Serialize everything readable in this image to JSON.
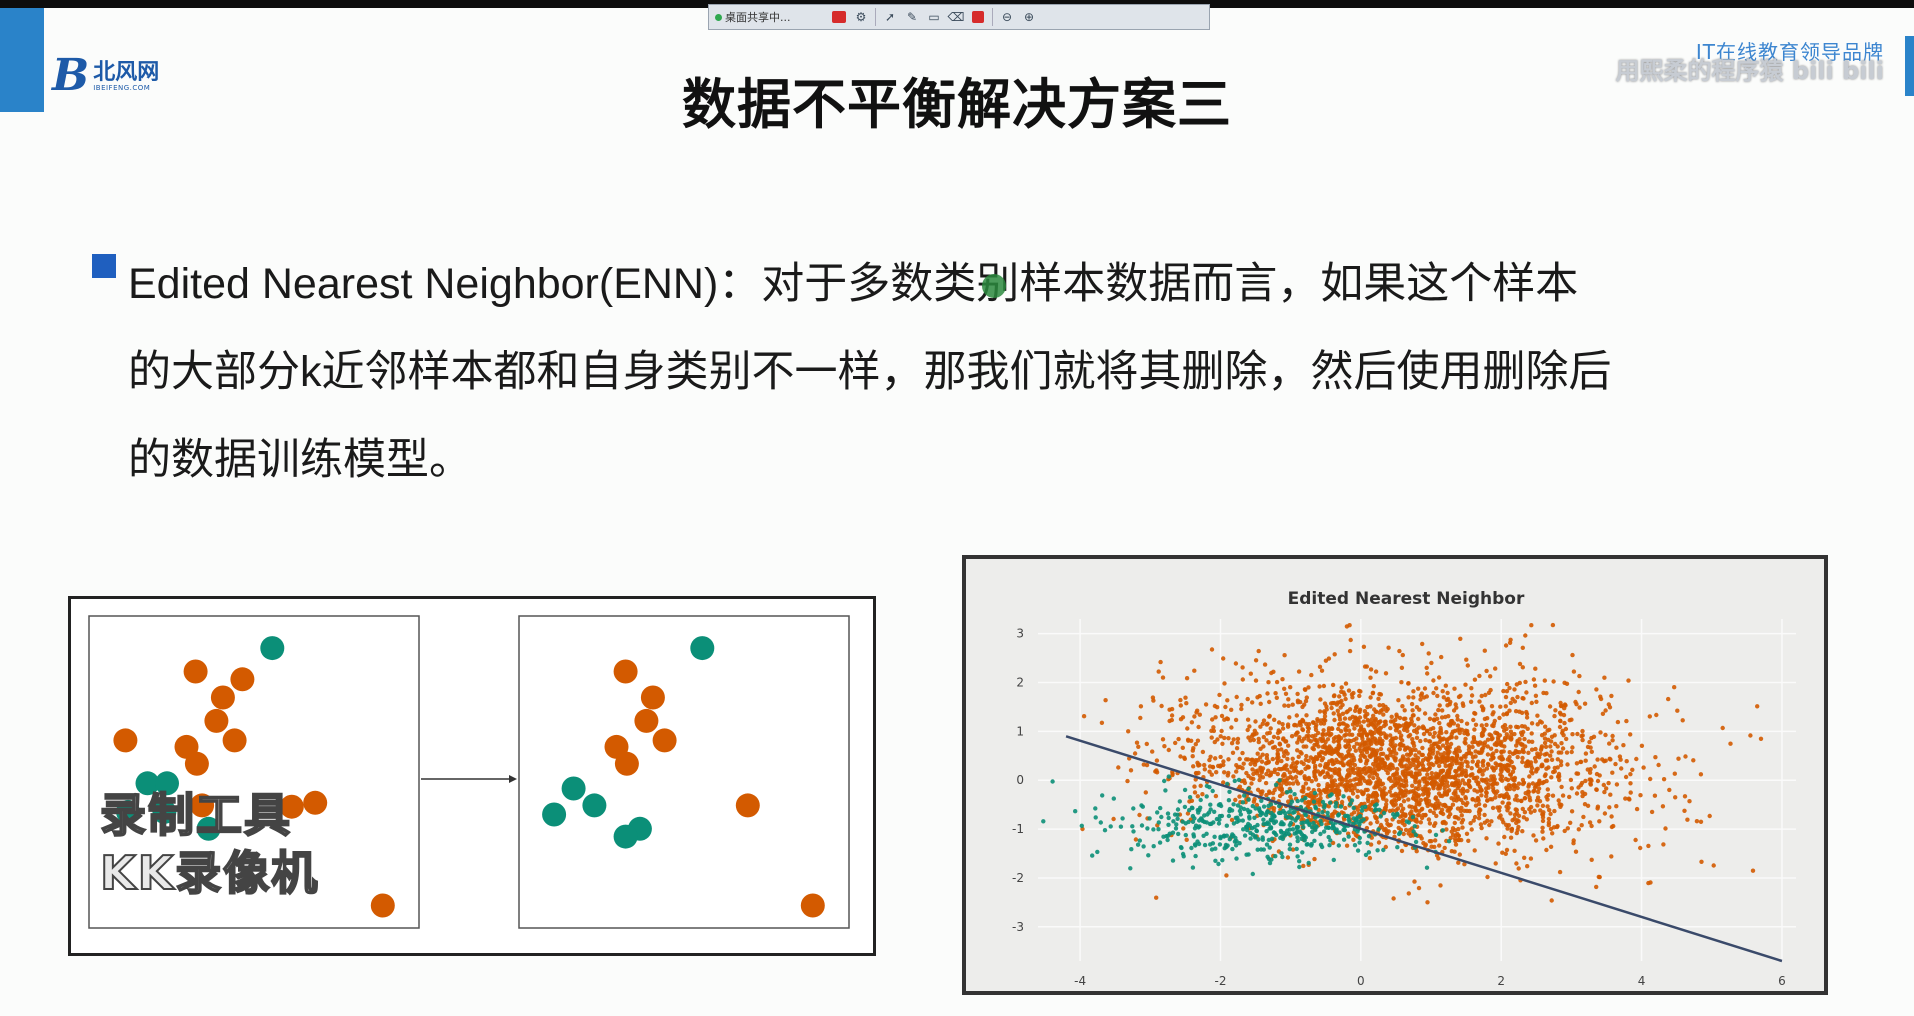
{
  "recorder_toolbar": {
    "share_label": "桌面共享中...",
    "icons": [
      "record-icon",
      "settings-icon",
      "pointer-icon",
      "pen-icon",
      "rectangle-icon",
      "eraser-icon",
      "stop-icon",
      "zoom-out-icon",
      "zoom-in-icon"
    ]
  },
  "logo": {
    "mark": "B",
    "cn": "北风网",
    "en": "IBEIFENG.COM"
  },
  "watermark": {
    "line1": "IT在线教育领导品牌",
    "line2": "用熙柔的程序猿 bili bili"
  },
  "slide": {
    "title": "数据不平衡解决方案三",
    "paragraph": {
      "line1": "Edited Nearest Neighbor(ENN)：对于多数类别样本数据而言，如果这个样本",
      "line2": "的大部分k近邻样本都和自身类别不一样，那我们就将其删除，然后使用删除后",
      "line3": "的数据训练模型。"
    }
  },
  "colors": {
    "orange": "#d35a00",
    "teal": "#0b8f78",
    "accent_blue": "#2a83c9",
    "bullet_blue": "#1f5fbf"
  },
  "stamp": {
    "line1": "录制工具",
    "line2": "KK录像机"
  },
  "chart_data": {
    "type": "scatter",
    "title": "Edited Nearest Neighbor",
    "xlabel": "",
    "ylabel": "",
    "xlim": [
      -4.6,
      6.2
    ],
    "ylim": [
      -3.7,
      3.3
    ],
    "x_ticks": [
      "-4",
      "-2",
      "0",
      "2",
      "4",
      "6"
    ],
    "y_ticks": [
      "3",
      "2",
      "1",
      "0",
      "-1",
      "-2",
      "-3"
    ],
    "grid": true,
    "series": [
      {
        "color": "#d35a00",
        "distribution": {
          "center": [
            0.5,
            0.2
          ],
          "spread": [
            1.6,
            0.9
          ],
          "approx_count": 3000
        }
      },
      {
        "color": "#0b8f78",
        "distribution": {
          "center": [
            -1.4,
            -0.9
          ],
          "spread": [
            1.1,
            0.35
          ],
          "approx_count": 500
        }
      }
    ],
    "decision_line": {
      "from": [
        -4.2,
        0.9
      ],
      "to": [
        6.0,
        -3.7
      ],
      "color": "#3a4a6a"
    }
  },
  "enn_diagram": {
    "before": {
      "orange": [
        [
          82,
          35
        ],
        [
          118,
          41
        ],
        [
          103,
          55
        ],
        [
          28,
          88
        ],
        [
          98,
          73
        ],
        [
          112,
          88
        ],
        [
          75,
          93
        ],
        [
          83,
          106
        ],
        [
          156,
          139
        ],
        [
          174,
          136
        ],
        [
          87,
          138
        ],
        [
          226,
          215
        ]
      ],
      "teal": [
        [
          141,
          17
        ],
        [
          45,
          121
        ],
        [
          60,
          121
        ],
        [
          30,
          143
        ],
        [
          58,
          143
        ],
        [
          92,
          156
        ]
      ]
    },
    "after": {
      "orange": [
        [
          82,
          35
        ],
        [
          103,
          55
        ],
        [
          98,
          73
        ],
        [
          112,
          88
        ],
        [
          75,
          93
        ],
        [
          83,
          106
        ],
        [
          176,
          138
        ],
        [
          226,
          215
        ]
      ],
      "teal": [
        [
          141,
          17
        ],
        [
          42,
          125
        ],
        [
          58,
          138
        ],
        [
          27,
          145
        ],
        [
          93,
          156
        ],
        [
          82,
          162
        ]
      ]
    }
  }
}
